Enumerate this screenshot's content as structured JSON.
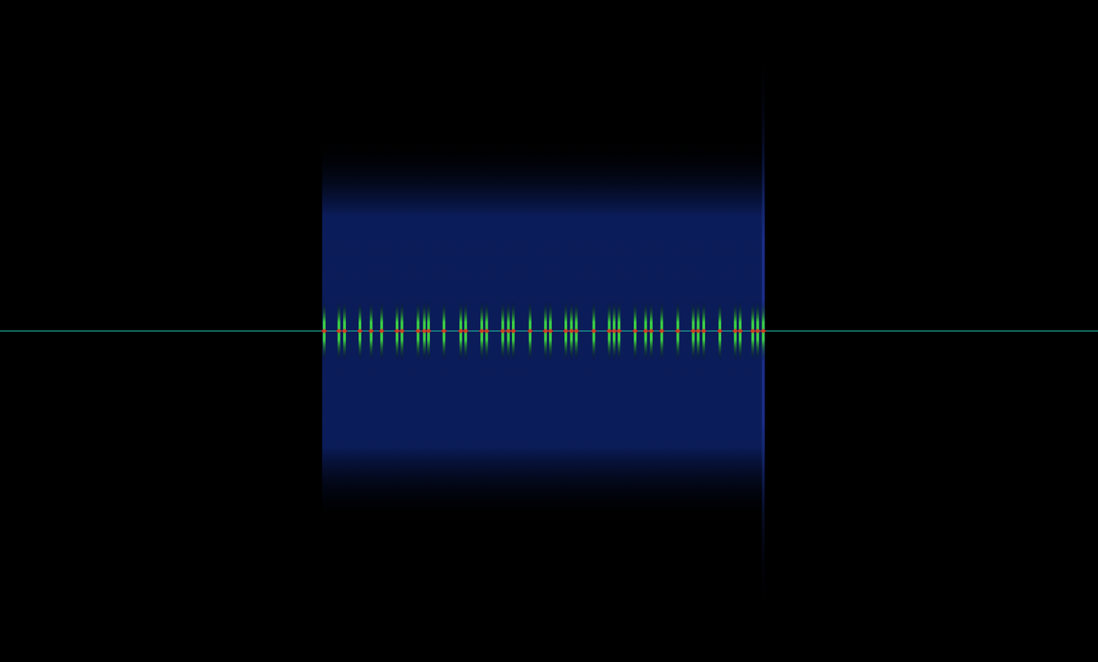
{
  "chart_data": {
    "type": "spectrogram",
    "xlim": [
      0,
      1568
    ],
    "ylim": [
      -1,
      1
    ],
    "tick_labels": false,
    "grid": false,
    "series": [
      {
        "type": "band",
        "color": "#0c1f63",
        "x": [
          460,
          1092
        ],
        "lower": [
          -0.58,
          -0.58
        ],
        "values": [
          0.58,
          0.58
        ]
      },
      {
        "type": "spike",
        "color": "#1a2f8a",
        "x": [
          1090
        ],
        "values": [
          0.88
        ]
      },
      {
        "type": "line",
        "color": "#1fa391",
        "x": [
          0,
          1568
        ],
        "values": [
          0,
          0
        ]
      },
      {
        "type": "spike",
        "color": "#3ccf45",
        "x": [
          463,
          484,
          492,
          514,
          530,
          545,
          567,
          574,
          597,
          606,
          612,
          634,
          658,
          665,
          688,
          695,
          718,
          726,
          733,
          757,
          779,
          786,
          808,
          816,
          823,
          848,
          870,
          877,
          884,
          907,
          922,
          930,
          945,
          968,
          990,
          997,
          1005,
          1028,
          1050,
          1057,
          1075,
          1082,
          1090
        ],
        "values": [
          0.09,
          0.09,
          0.09,
          0.09,
          0.09,
          0.09,
          0.09,
          0.09,
          0.09,
          0.09,
          0.09,
          0.09,
          0.09,
          0.09,
          0.09,
          0.09,
          0.09,
          0.09,
          0.09,
          0.09,
          0.09,
          0.09,
          0.09,
          0.09,
          0.09,
          0.09,
          0.09,
          0.09,
          0.09,
          0.09,
          0.09,
          0.09,
          0.09,
          0.09,
          0.09,
          0.09,
          0.09,
          0.09,
          0.09,
          0.09,
          0.09,
          0.09,
          0.09
        ]
      },
      {
        "type": "scatter",
        "marker": "diamond",
        "color": "#e8231c",
        "x": [
          463,
          484,
          492,
          514,
          530,
          545,
          567,
          574,
          597,
          606,
          612,
          634,
          658,
          665,
          688,
          695,
          718,
          726,
          733,
          757,
          779,
          786,
          808,
          816,
          823,
          848,
          870,
          877,
          884,
          907,
          922,
          930,
          945,
          968,
          990,
          997,
          1005,
          1028,
          1050,
          1057,
          1075,
          1082,
          1090
        ],
        "values": [
          0,
          0,
          0,
          0,
          0,
          0,
          0,
          0,
          0,
          0,
          0,
          0,
          0,
          0,
          0,
          0,
          0,
          0,
          0,
          0,
          0,
          0,
          0,
          0,
          0,
          0,
          0,
          0,
          0,
          0,
          0,
          0,
          0,
          0,
          0,
          0,
          0,
          0,
          0,
          0,
          0,
          0,
          0
        ]
      }
    ]
  }
}
